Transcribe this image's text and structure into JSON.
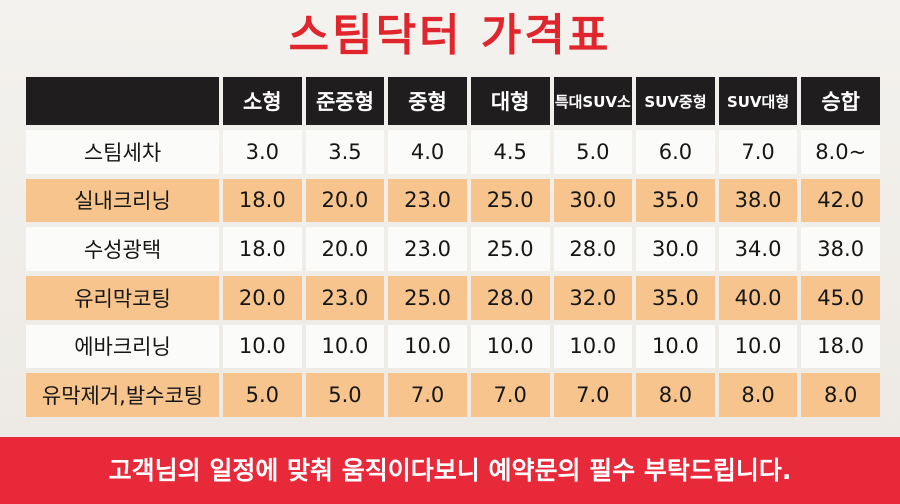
{
  "title": "스팀닥터 가격표",
  "columns": [
    "소형",
    "준중형",
    "중형",
    "대형",
    "특대SUV소",
    "SUV중형",
    "SUV대형",
    "승합"
  ],
  "rows": [
    {
      "label": "스팀세차",
      "values": [
        "3.0",
        "3.5",
        "4.0",
        "4.5",
        "5.0",
        "6.0",
        "7.0",
        "8.0~"
      ]
    },
    {
      "label": "실내크리닝",
      "values": [
        "18.0",
        "20.0",
        "23.0",
        "25.0",
        "30.0",
        "35.0",
        "38.0",
        "42.0"
      ]
    },
    {
      "label": "수성광택",
      "values": [
        "18.0",
        "20.0",
        "23.0",
        "25.0",
        "28.0",
        "30.0",
        "34.0",
        "38.0"
      ]
    },
    {
      "label": "유리막코팅",
      "values": [
        "20.0",
        "23.0",
        "25.0",
        "28.0",
        "32.0",
        "35.0",
        "40.0",
        "45.0"
      ]
    },
    {
      "label": "에바크리닝",
      "values": [
        "10.0",
        "10.0",
        "10.0",
        "10.0",
        "10.0",
        "10.0",
        "10.0",
        "18.0"
      ]
    },
    {
      "label": "유막제거,발수코팅",
      "values": [
        "5.0",
        "5.0",
        "7.0",
        "7.0",
        "7.0",
        "8.0",
        "8.0",
        "8.0"
      ]
    }
  ],
  "footer_notice": "고객님의 일정에 맞춰 움직이다보니 예약문의 필수 부탁드립니다.",
  "colors": {
    "title": "#e0262c",
    "header_bg": "#1f1d1d",
    "row_light": "#fbfbfa",
    "row_orange": "#f6c48c",
    "footer_bg": "#e8293a"
  }
}
